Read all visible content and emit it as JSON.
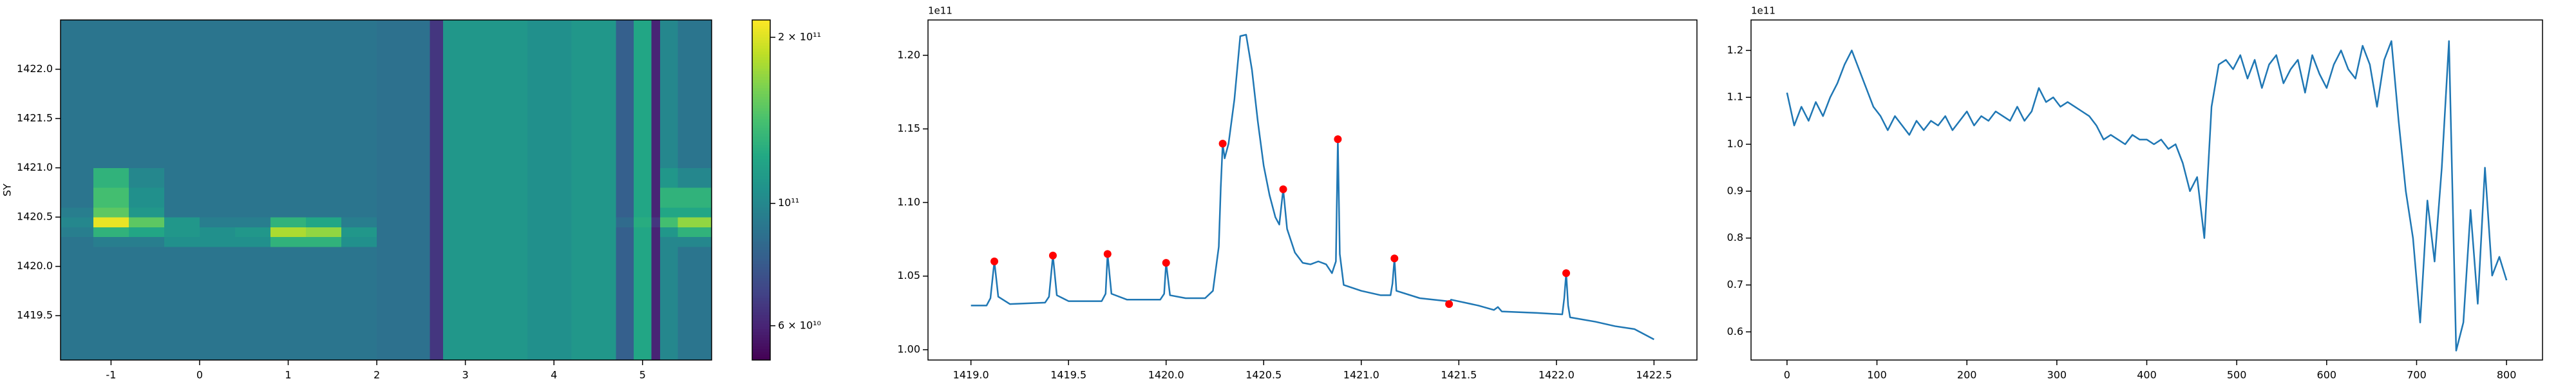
{
  "chart_data": [
    {
      "type": "heatmap",
      "ylabel": "SY",
      "colormap": "viridis",
      "log_scale": true,
      "xlim": [
        -1.57,
        5.78
      ],
      "ylim": [
        1419.05,
        1422.5
      ],
      "xticks": [
        -1,
        0,
        1,
        2,
        3,
        4,
        5
      ],
      "yticks": [
        1419.5,
        {
          "value": 1420,
          "label": "1420.0"
        },
        1420.5,
        {
          "value": 1421,
          "label": "1421.0"
        },
        1421.5,
        {
          "value": 1422,
          "label": "1422.0"
        }
      ],
      "x_edges": [
        -1.57,
        -1.2,
        -0.8,
        -0.4,
        0,
        0.4,
        0.8,
        1.2,
        1.6,
        2.0,
        2.6,
        2.75,
        3.2,
        3.7,
        4.2,
        4.7,
        4.9,
        5.1,
        5.2,
        5.4,
        5.78
      ],
      "y_edges": [
        1419.05,
        1419.5,
        1420.0,
        1420.2,
        1420.3,
        1420.4,
        1420.5,
        1420.6,
        1420.8,
        1421.0,
        1421.5,
        1422.0,
        1422.5
      ],
      "values": [
        [
          90000000000.0,
          90000000000.0,
          90000000000.0,
          90000000000.0,
          90000000000.0,
          90000000000.0,
          90000000000.0,
          90000000000.0,
          90000000000.0,
          88000000000.0,
          65000000000.0,
          110000000000.0,
          110000000000.0,
          105000000000.0,
          110000000000.0,
          80000000000.0,
          120000000000.0,
          60000000000.0,
          100000000000.0,
          90000000000.0
        ],
        [
          90000000000.0,
          90000000000.0,
          90000000000.0,
          90000000000.0,
          90000000000.0,
          90000000000.0,
          90000000000.0,
          90000000000.0,
          90000000000.0,
          88000000000.0,
          65000000000.0,
          110000000000.0,
          110000000000.0,
          105000000000.0,
          110000000000.0,
          80000000000.0,
          120000000000.0,
          60000000000.0,
          100000000000.0,
          90000000000.0
        ],
        [
          90000000000.0,
          90000000000.0,
          90000000000.0,
          90000000000.0,
          90000000000.0,
          90000000000.0,
          90000000000.0,
          90000000000.0,
          90000000000.0,
          88000000000.0,
          65000000000.0,
          110000000000.0,
          110000000000.0,
          105000000000.0,
          110000000000.0,
          80000000000.0,
          120000000000.0,
          60000000000.0,
          100000000000.0,
          90000000000.0
        ],
        [
          90000000000.0,
          95000000000.0,
          95000000000.0,
          105000000000.0,
          105000000000.0,
          105000000000.0,
          130000000000.0,
          130000000000.0,
          105000000000.0,
          88000000000.0,
          65000000000.0,
          110000000000.0,
          110000000000.0,
          105000000000.0,
          110000000000.0,
          80000000000.0,
          120000000000.0,
          60000000000.0,
          100000000000.0,
          100000000000.0
        ],
        [
          95000000000.0,
          130000000000.0,
          120000000000.0,
          110000000000.0,
          105000000000.0,
          110000000000.0,
          180000000000.0,
          170000000000.0,
          110000000000.0,
          88000000000.0,
          65000000000.0,
          110000000000.0,
          110000000000.0,
          105000000000.0,
          110000000000.0,
          80000000000.0,
          120000000000.0,
          60000000000.0,
          110000000000.0,
          130000000000.0
        ],
        [
          100000000000.0,
          205000000000.0,
          150000000000.0,
          110000000000.0,
          95000000000.0,
          95000000000.0,
          130000000000.0,
          120000000000.0,
          95000000000.0,
          88000000000.0,
          65000000000.0,
          110000000000.0,
          110000000000.0,
          105000000000.0,
          110000000000.0,
          85000000000.0,
          125000000000.0,
          65000000000.0,
          140000000000.0,
          170000000000.0
        ],
        [
          95000000000.0,
          150000000000.0,
          110000000000.0,
          90000000000.0,
          90000000000.0,
          90000000000.0,
          90000000000.0,
          90000000000.0,
          90000000000.0,
          88000000000.0,
          65000000000.0,
          110000000000.0,
          110000000000.0,
          105000000000.0,
          110000000000.0,
          80000000000.0,
          120000000000.0,
          60000000000.0,
          120000000000.0,
          120000000000.0
        ],
        [
          90000000000.0,
          140000000000.0,
          105000000000.0,
          90000000000.0,
          90000000000.0,
          90000000000.0,
          90000000000.0,
          90000000000.0,
          90000000000.0,
          88000000000.0,
          65000000000.0,
          110000000000.0,
          110000000000.0,
          105000000000.0,
          110000000000.0,
          80000000000.0,
          120000000000.0,
          60000000000.0,
          130000000000.0,
          130000000000.0
        ],
        [
          90000000000.0,
          130000000000.0,
          100000000000.0,
          90000000000.0,
          90000000000.0,
          90000000000.0,
          90000000000.0,
          90000000000.0,
          90000000000.0,
          88000000000.0,
          65000000000.0,
          110000000000.0,
          110000000000.0,
          105000000000.0,
          110000000000.0,
          80000000000.0,
          120000000000.0,
          60000000000.0,
          110000000000.0,
          100000000000.0
        ],
        [
          90000000000.0,
          90000000000.0,
          90000000000.0,
          90000000000.0,
          90000000000.0,
          90000000000.0,
          90000000000.0,
          90000000000.0,
          90000000000.0,
          88000000000.0,
          65000000000.0,
          110000000000.0,
          110000000000.0,
          105000000000.0,
          110000000000.0,
          80000000000.0,
          120000000000.0,
          60000000000.0,
          100000000000.0,
          90000000000.0
        ],
        [
          90000000000.0,
          90000000000.0,
          90000000000.0,
          90000000000.0,
          90000000000.0,
          90000000000.0,
          90000000000.0,
          90000000000.0,
          90000000000.0,
          88000000000.0,
          65000000000.0,
          110000000000.0,
          110000000000.0,
          105000000000.0,
          110000000000.0,
          80000000000.0,
          120000000000.0,
          60000000000.0,
          100000000000.0,
          90000000000.0
        ],
        [
          90000000000.0,
          90000000000.0,
          90000000000.0,
          90000000000.0,
          90000000000.0,
          90000000000.0,
          90000000000.0,
          90000000000.0,
          90000000000.0,
          88000000000.0,
          65000000000.0,
          110000000000.0,
          110000000000.0,
          105000000000.0,
          110000000000.0,
          80000000000.0,
          120000000000.0,
          60000000000.0,
          100000000000.0,
          90000000000.0
        ]
      ],
      "colorbar": {
        "lim": [
          52000000000.0,
          215000000000.0
        ],
        "ticks": [
          {
            "value": 60000000000.0,
            "label": "6 × 10¹⁰"
          },
          {
            "value": 100000000000.0,
            "label": "10¹¹"
          },
          {
            "value": 200000000000.0,
            "label": "2 × 10¹¹"
          }
        ]
      }
    },
    {
      "type": "line",
      "offset_text": "1e11",
      "xlim": [
        1418.78,
        1422.72
      ],
      "ylim": [
        0.993,
        1.224
      ],
      "xticks": [
        {
          "value": 1419,
          "label": "1419.0"
        },
        1419.5,
        {
          "value": 1420,
          "label": "1420.0"
        },
        1420.5,
        {
          "value": 1421,
          "label": "1421.0"
        },
        1421.5,
        {
          "value": 1422,
          "label": "1422.0"
        },
        1422.5
      ],
      "yticks": [
        {
          "value": 1,
          "label": "1.00"
        },
        1.05,
        {
          "value": 1.1,
          "label": "1.10"
        },
        1.15,
        {
          "value": 1.2,
          "label": "1.20"
        }
      ],
      "series": [
        {
          "style": "line",
          "color": "#1f77b4",
          "x": [
            1419.0,
            1419.08,
            1419.1,
            1419.12,
            1419.14,
            1419.2,
            1419.38,
            1419.4,
            1419.42,
            1419.44,
            1419.5,
            1419.67,
            1419.69,
            1419.7,
            1419.72,
            1419.8,
            1419.97,
            1419.99,
            1420.0,
            1420.02,
            1420.1,
            1420.2,
            1420.24,
            1420.27,
            1420.28,
            1420.29,
            1420.3,
            1420.32,
            1420.35,
            1420.38,
            1420.41,
            1420.44,
            1420.47,
            1420.5,
            1420.53,
            1420.56,
            1420.58,
            1420.6,
            1420.62,
            1420.66,
            1420.7,
            1420.74,
            1420.78,
            1420.82,
            1420.85,
            1420.87,
            1420.88,
            1420.89,
            1420.91,
            1421.0,
            1421.1,
            1421.15,
            1421.16,
            1421.17,
            1421.18,
            1421.3,
            1421.44,
            1421.45,
            1421.46,
            1421.6,
            1421.68,
            1421.7,
            1421.72,
            1421.9,
            1422.03,
            1422.04,
            1422.05,
            1422.06,
            1422.07,
            1422.2,
            1422.3,
            1422.4,
            1422.5
          ],
          "values": [
            1.03,
            1.03,
            1.035,
            1.06,
            1.036,
            1.031,
            1.032,
            1.036,
            1.064,
            1.037,
            1.033,
            1.033,
            1.038,
            1.065,
            1.038,
            1.034,
            1.034,
            1.038,
            1.059,
            1.037,
            1.035,
            1.035,
            1.04,
            1.07,
            1.11,
            1.14,
            1.13,
            1.14,
            1.17,
            1.213,
            1.214,
            1.19,
            1.155,
            1.125,
            1.105,
            1.09,
            1.085,
            1.109,
            1.082,
            1.066,
            1.059,
            1.058,
            1.06,
            1.058,
            1.052,
            1.06,
            1.143,
            1.065,
            1.044,
            1.04,
            1.037,
            1.037,
            1.045,
            1.062,
            1.04,
            1.035,
            1.033,
            1.031,
            1.034,
            1.03,
            1.027,
            1.029,
            1.026,
            1.025,
            1.024,
            1.035,
            1.052,
            1.03,
            1.022,
            1.019,
            1.016,
            1.014,
            1.007
          ]
        },
        {
          "style": "marker",
          "color": "#ff0000",
          "x": [
            1419.12,
            1419.42,
            1419.7,
            1420.0,
            1420.29,
            1420.6,
            1420.88,
            1421.17,
            1421.45,
            1422.05
          ],
          "values": [
            1.06,
            1.064,
            1.065,
            1.059,
            1.14,
            1.109,
            1.143,
            1.062,
            1.031,
            1.052
          ]
        }
      ]
    },
    {
      "type": "line",
      "offset_text": "1e11",
      "xlim": [
        -40,
        840
      ],
      "ylim": [
        0.54,
        1.265
      ],
      "xticks": [
        0,
        100,
        200,
        300,
        400,
        500,
        600,
        700,
        800
      ],
      "yticks": [
        0.6,
        0.7,
        0.8,
        0.9,
        {
          "value": 1,
          "label": "1.0"
        },
        1.1,
        1.2
      ],
      "series": [
        {
          "style": "line",
          "color": "#1f77b4",
          "x": [
            0,
            8,
            16,
            24,
            32,
            40,
            48,
            56,
            64,
            72,
            80,
            88,
            96,
            104,
            112,
            120,
            128,
            136,
            144,
            152,
            160,
            168,
            176,
            184,
            192,
            200,
            208,
            216,
            224,
            232,
            240,
            248,
            256,
            264,
            272,
            280,
            288,
            296,
            304,
            312,
            320,
            328,
            336,
            344,
            352,
            360,
            368,
            376,
            384,
            392,
            400,
            408,
            416,
            424,
            432,
            440,
            448,
            456,
            464,
            472,
            480,
            488,
            496,
            504,
            512,
            520,
            528,
            536,
            544,
            552,
            560,
            568,
            576,
            584,
            592,
            600,
            608,
            616,
            624,
            632,
            640,
            648,
            656,
            664,
            672,
            680,
            688,
            696,
            704,
            712,
            720,
            728,
            736,
            744,
            752,
            760,
            768,
            776,
            784,
            792,
            800
          ],
          "values": [
            1.11,
            1.04,
            1.08,
            1.05,
            1.09,
            1.06,
            1.1,
            1.13,
            1.17,
            1.2,
            1.16,
            1.12,
            1.08,
            1.06,
            1.03,
            1.06,
            1.04,
            1.02,
            1.05,
            1.03,
            1.05,
            1.04,
            1.06,
            1.03,
            1.05,
            1.07,
            1.04,
            1.06,
            1.05,
            1.07,
            1.06,
            1.05,
            1.08,
            1.05,
            1.07,
            1.12,
            1.09,
            1.1,
            1.08,
            1.09,
            1.08,
            1.07,
            1.06,
            1.04,
            1.01,
            1.02,
            1.01,
            1.0,
            1.02,
            1.01,
            1.01,
            1.0,
            1.01,
            0.99,
            1.0,
            0.96,
            0.9,
            0.93,
            0.8,
            1.08,
            1.17,
            1.18,
            1.16,
            1.19,
            1.14,
            1.18,
            1.12,
            1.17,
            1.19,
            1.13,
            1.16,
            1.18,
            1.11,
            1.19,
            1.15,
            1.12,
            1.17,
            1.2,
            1.16,
            1.14,
            1.21,
            1.17,
            1.08,
            1.18,
            1.22,
            1.05,
            0.9,
            0.8,
            0.62,
            0.88,
            0.75,
            0.95,
            1.22,
            0.56,
            0.62,
            0.86,
            0.66,
            0.95,
            0.72,
            0.76,
            0.71
          ]
        }
      ]
    }
  ]
}
